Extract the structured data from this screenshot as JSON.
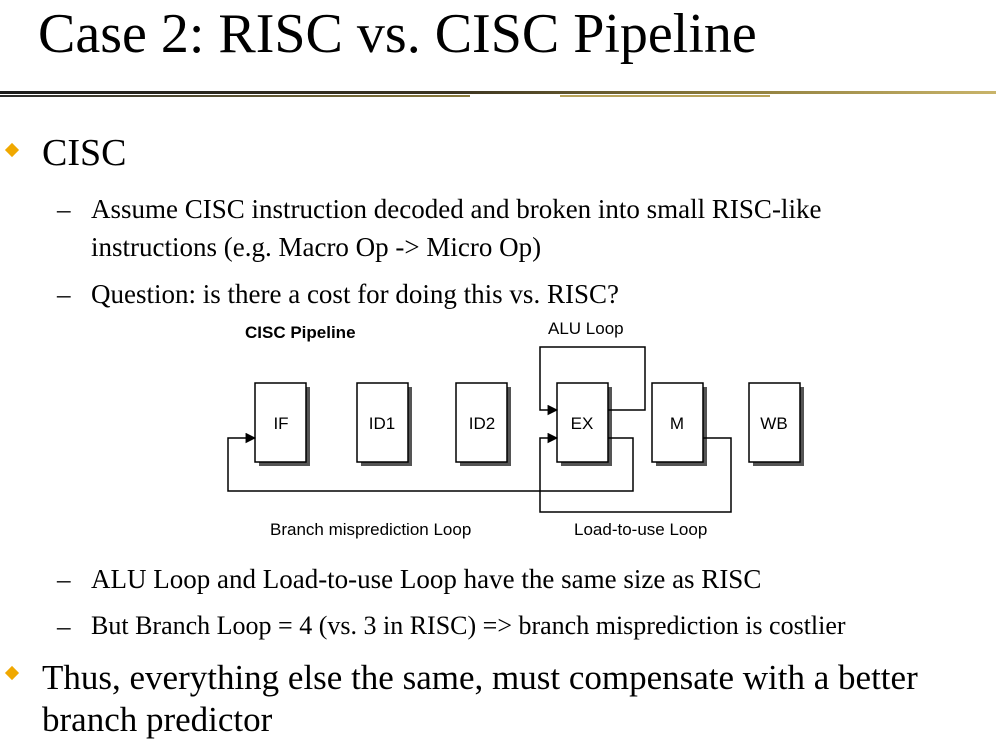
{
  "slide": {
    "title": "Case 2: RISC vs. CISC Pipeline",
    "bullets": [
      {
        "text": "CISC",
        "subs": [
          {
            "lines": [
              "Assume CISC instruction decoded and broken into small RISC-like",
              "instructions (e.g. Macro Op -> Micro Op)"
            ]
          },
          {
            "lines": [
              "Question: is there a cost for doing this vs. RISC?"
            ]
          }
        ]
      },
      {
        "subs_after_diagram": [
          {
            "lines": [
              "ALU Loop and Load-to-use Loop have the same size as RISC"
            ]
          },
          {
            "lines": [
              "But Branch Loop = 4 (vs. 3 in RISC) => branch misprediction is costlier"
            ]
          }
        ]
      },
      {
        "lines": [
          "Thus, everything else the same, must compensate with a better",
          "branch predictor"
        ]
      }
    ],
    "dash": "–"
  },
  "diagram": {
    "title": "CISC Pipeline",
    "stages": [
      "IF",
      "ID1",
      "ID2",
      "EX",
      "M",
      "WB"
    ],
    "loops": {
      "alu": "ALU Loop",
      "branch": "Branch misprediction Loop",
      "load": "Load-to-use Loop"
    }
  },
  "colors": {
    "bullet": "#f0a800",
    "text": "#000000",
    "rule_dark": "#1a1a1a",
    "rule_gold": "#c9b46a"
  }
}
